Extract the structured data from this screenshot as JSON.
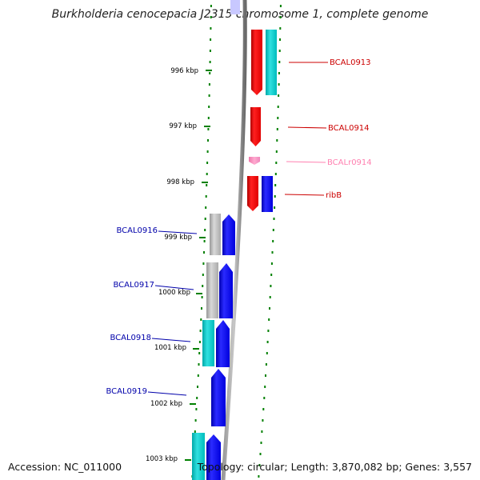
{
  "header": {
    "title": "Burkholderia cenocepacia J2315 chromosome 1, complete genome"
  },
  "footer": {
    "accession": "Accession: NC_011000",
    "summary": "Topology: circular; Length: 3,870,082 bp; Genes: 3,557"
  },
  "colors": {
    "forward_cds": "#ff0000",
    "reverse_cds": "#0000ff",
    "rna": "#ff88bb",
    "paired_cyan": "#00c8c8",
    "paired_gray": "#b4b4b4",
    "axis": "#808080",
    "tick": "#008000",
    "label_forward": "#cc0000",
    "label_reverse": "#0000aa",
    "label_rna": "#ff80b0"
  },
  "ticks": [
    {
      "label": "996 kbp"
    },
    {
      "label": "997 kbp"
    },
    {
      "label": "998 kbp"
    },
    {
      "label": "999 kbp"
    },
    {
      "label": "1000 kbp"
    },
    {
      "label": "1001 kbp"
    },
    {
      "label": "1002 kbp"
    },
    {
      "label": "1003 kbp"
    }
  ],
  "genes": [
    {
      "name": "BCAL0913",
      "strand": "+",
      "type": "CDS"
    },
    {
      "name": "BCAL0914",
      "strand": "+",
      "type": "CDS"
    },
    {
      "name": "BCALr0914",
      "strand": "+",
      "type": "RNA"
    },
    {
      "name": "ribB",
      "strand": "+",
      "type": "CDS"
    },
    {
      "name": "BCAL0916",
      "strand": "-",
      "type": "CDS"
    },
    {
      "name": "BCAL0917",
      "strand": "-",
      "type": "CDS"
    },
    {
      "name": "BCAL0918",
      "strand": "-",
      "type": "CDS"
    },
    {
      "name": "BCAL0919",
      "strand": "-",
      "type": "CDS"
    }
  ]
}
